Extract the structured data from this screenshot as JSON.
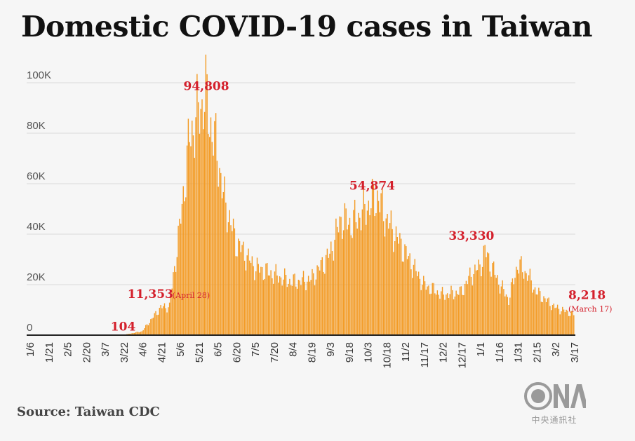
{
  "title": "Domestic COVID-19 cases in Taiwan",
  "source": "Source: Taiwan CDC",
  "logo": {
    "mark": "CNA",
    "caption": "中央通訊社"
  },
  "colors": {
    "bar": "#f39b25",
    "annotation": "#d4202c",
    "grid": "#d9d9d9",
    "background": "#f6f6f6"
  },
  "chart_data": {
    "type": "bar",
    "title": "Domestic COVID-19 cases in Taiwan",
    "xlabel": "",
    "ylabel": "",
    "ylim": [
      0,
      100000
    ],
    "y_ticks": [
      {
        "value": 0,
        "label": "0"
      },
      {
        "value": 20000,
        "label": "20K"
      },
      {
        "value": 40000,
        "label": "40K"
      },
      {
        "value": 60000,
        "label": "60K"
      },
      {
        "value": 80000,
        "label": "80K"
      },
      {
        "value": 100000,
        "label": "100K"
      }
    ],
    "x_ticks": [
      "1/6",
      "1/21",
      "2/5",
      "2/20",
      "3/7",
      "3/22",
      "4/6",
      "4/21",
      "5/6",
      "5/21",
      "6/5",
      "6/20",
      "7/5",
      "7/20",
      "8/4",
      "8/19",
      "9/3",
      "9/18",
      "10/3",
      "10/18",
      "11/2",
      "11/17",
      "12/2",
      "12/17",
      "1/1",
      "1/16",
      "1/31",
      "2/15",
      "3/2",
      "3/17"
    ],
    "series_shape": [
      [
        "1/6",
        20
      ],
      [
        "3/22",
        104
      ],
      [
        "4/6",
        1500
      ],
      [
        "4/21",
        11000
      ],
      [
        "4/28",
        11353
      ],
      [
        "5/6",
        42000
      ],
      [
        "5/14",
        78000
      ],
      [
        "5/21",
        88000
      ],
      [
        "5/27",
        94808
      ],
      [
        "6/1",
        80000
      ],
      [
        "6/5",
        73000
      ],
      [
        "6/10",
        55000
      ],
      [
        "6/20",
        37000
      ],
      [
        "7/5",
        27000
      ],
      [
        "7/20",
        24000
      ],
      [
        "8/4",
        21000
      ],
      [
        "8/19",
        22000
      ],
      [
        "9/3",
        32000
      ],
      [
        "9/12",
        46000
      ],
      [
        "9/20",
        44000
      ],
      [
        "9/28",
        48000
      ],
      [
        "10/3",
        51000
      ],
      [
        "10/11",
        54874
      ],
      [
        "10/18",
        46000
      ],
      [
        "11/2",
        33000
      ],
      [
        "11/17",
        20000
      ],
      [
        "12/2",
        16000
      ],
      [
        "12/17",
        17000
      ],
      [
        "12/25",
        24000
      ],
      [
        "1/1",
        27000
      ],
      [
        "1/5",
        33330
      ],
      [
        "1/16",
        21000
      ],
      [
        "1/24",
        14000
      ],
      [
        "1/31",
        28000
      ],
      [
        "2/8",
        24000
      ],
      [
        "2/15",
        17000
      ],
      [
        "3/2",
        11000
      ],
      [
        "3/17",
        8218
      ]
    ],
    "annotations": [
      {
        "label": "94,808",
        "date": "5/27",
        "value": 94808
      },
      {
        "label": "54,874",
        "date": "10/11",
        "value": 54874
      },
      {
        "label": "33,330",
        "date": "1/5",
        "value": 33330
      },
      {
        "label": "11,353",
        "note": "(April 28)",
        "date": "4/28",
        "value": 11353
      },
      {
        "label": "104",
        "date": "3/22",
        "value": 104
      },
      {
        "label": "8,218",
        "note": "(March 17)",
        "date": "3/17",
        "value": 8218
      }
    ]
  }
}
